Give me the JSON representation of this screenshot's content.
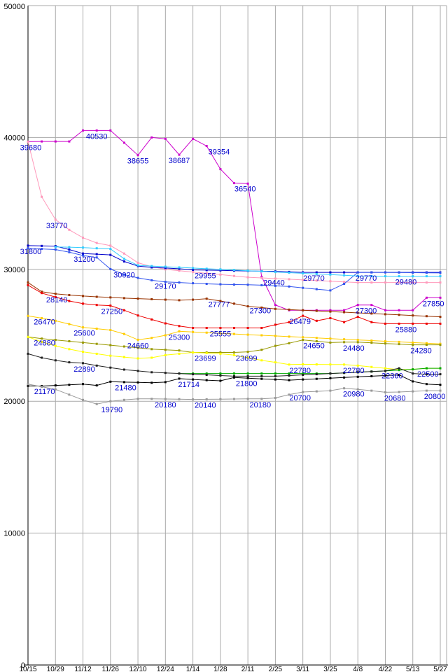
{
  "page": {
    "background": "#ffffff"
  },
  "chart_data": {
    "type": "line",
    "title": "",
    "xlabel": "",
    "ylabel": "",
    "ylim": [
      0,
      50000
    ],
    "y_ticks": [
      0,
      10000,
      20000,
      30000,
      40000,
      50000
    ],
    "y_tick_labels": [
      "0",
      "10000",
      "20000",
      "30000",
      "40000",
      "50000"
    ],
    "x_tick_labels": [
      "10/15",
      "10/29",
      "11/12",
      "11/26",
      "12/10",
      "12/24",
      "1/14",
      "1/28",
      "2/11",
      "2/25",
      "3/11",
      "3/25",
      "4/8",
      "4/22",
      "5/13",
      "5/27"
    ],
    "points_per_interval": 2,
    "grid": true,
    "legend_position": "none",
    "axis_color": "#000000",
    "grid_color": "#aaaaaa",
    "annotation_color": "#0000cc",
    "series": [
      {
        "name": "series-magenta",
        "color": "#cc00cc",
        "values": [
          39680,
          39700,
          39700,
          39700,
          40530,
          40530,
          40530,
          39600,
          38655,
          40000,
          39900,
          38687,
          39900,
          39354,
          37600,
          36540,
          36500,
          29440,
          27300,
          26900,
          26900,
          26900,
          26900,
          26900,
          27300,
          27300,
          26900,
          26900,
          26900,
          27850,
          27850
        ]
      },
      {
        "name": "series-pink",
        "color": "#ff99bb",
        "values": [
          39680,
          35500,
          33770,
          33000,
          32400,
          32000,
          31800,
          31200,
          30500,
          30200,
          30000,
          29900,
          29800,
          29700,
          29600,
          29500,
          29400,
          29350,
          29300,
          29250,
          29200,
          29150,
          29100,
          29050,
          29000,
          29000,
          29000,
          29000,
          29000,
          29000,
          29000
        ]
      },
      {
        "name": "series-blue",
        "color": "#0000cc",
        "values": [
          31800,
          31780,
          31760,
          31500,
          31200,
          31150,
          31100,
          30600,
          30250,
          30150,
          30100,
          30050,
          29955,
          29940,
          29920,
          29900,
          29880,
          29860,
          29840,
          29810,
          29770,
          29770,
          29770,
          29770,
          29770,
          29770,
          29770,
          29770,
          29770,
          29770,
          29770
        ]
      },
      {
        "name": "series-navy",
        "color": "#3355ee",
        "values": [
          31600,
          31550,
          31500,
          31300,
          31050,
          30900,
          30020,
          29600,
          29350,
          29170,
          29050,
          29000,
          28950,
          28900,
          28870,
          28850,
          28830,
          28800,
          28750,
          28700,
          28600,
          28500,
          28400,
          28900,
          29770,
          29770,
          29770,
          29760,
          29750,
          29740,
          29730
        ]
      },
      {
        "name": "series-cyan",
        "color": "#33ccff",
        "values": [
          null,
          null,
          31700,
          31680,
          31650,
          31600,
          31550,
          30800,
          30300,
          30250,
          30200,
          30150,
          30100,
          30050,
          30000,
          29950,
          29900,
          29850,
          29800,
          29750,
          29700,
          29650,
          29600,
          29550,
          29500,
          29490,
          29480,
          29480,
          29480,
          29480,
          29480
        ]
      },
      {
        "name": "series-maroon",
        "color": "#993300",
        "values": [
          29000,
          28300,
          28140,
          28050,
          27980,
          27920,
          27870,
          27820,
          27780,
          27740,
          27700,
          27660,
          27700,
          27777,
          27600,
          27400,
          27200,
          27100,
          27000,
          26950,
          26900,
          26850,
          26800,
          26750,
          26700,
          26650,
          26600,
          26550,
          26500,
          26450,
          26400
        ]
      },
      {
        "name": "series-red",
        "color": "#ee0000",
        "values": [
          28800,
          28200,
          27900,
          27600,
          27400,
          27300,
          27250,
          26900,
          26500,
          26200,
          25900,
          25700,
          25555,
          25555,
          25555,
          25555,
          25555,
          25555,
          25800,
          26000,
          26479,
          26100,
          26300,
          26000,
          26400,
          26000,
          25880,
          25880,
          25880,
          25880,
          25880
        ]
      },
      {
        "name": "series-yellow",
        "color": "#ffcc00",
        "values": [
          26470,
          26300,
          26100,
          25850,
          25600,
          25500,
          25400,
          25100,
          24660,
          24800,
          25000,
          25300,
          25250,
          25200,
          25150,
          25100,
          25050,
          25000,
          24950,
          24900,
          24850,
          24800,
          24750,
          24700,
          24650,
          24600,
          24550,
          24500,
          24450,
          24400,
          24350
        ]
      },
      {
        "name": "series-olive",
        "color": "#999900",
        "values": [
          24880,
          24750,
          24650,
          24550,
          24450,
          24350,
          24250,
          24150,
          24050,
          23950,
          23900,
          23850,
          23699,
          23699,
          23699,
          23699,
          23750,
          23900,
          24200,
          24400,
          24650,
          24550,
          24450,
          24480,
          24480,
          24430,
          24380,
          24330,
          24280,
          24280,
          24280
        ]
      },
      {
        "name": "series-light-yellow",
        "color": "#ffff00",
        "values": [
          24880,
          24500,
          24200,
          23950,
          23750,
          23600,
          23450,
          23350,
          23250,
          23300,
          23500,
          23600,
          23699,
          23650,
          23600,
          23500,
          23300,
          23100,
          22950,
          22780,
          22800,
          22790,
          22785,
          22780,
          22700,
          22600,
          22500,
          22400,
          22420,
          22500,
          22500
        ]
      },
      {
        "name": "series-green",
        "color": "#00aa00",
        "values": [
          null,
          null,
          null,
          null,
          null,
          null,
          null,
          null,
          null,
          null,
          null,
          22100,
          22100,
          22100,
          22100,
          22100,
          22100,
          22100,
          22100,
          22100,
          22100,
          22100,
          22100,
          22150,
          22200,
          22250,
          22300,
          22360,
          22420,
          22500,
          22500
        ]
      },
      {
        "name": "series-black",
        "color": "#222222",
        "values": [
          23600,
          23300,
          23100,
          22950,
          22890,
          22700,
          22550,
          22400,
          22300,
          22200,
          22150,
          22100,
          22050,
          22000,
          21950,
          21900,
          21900,
          21900,
          21900,
          21950,
          22000,
          22050,
          22100,
          22150,
          22200,
          22250,
          22300,
          22500,
          22100,
          22050,
          22050
        ]
      },
      {
        "name": "series-dark",
        "color": "#000000",
        "values": [
          21170,
          21150,
          21200,
          21250,
          21300,
          21200,
          21480,
          21450,
          21430,
          21400,
          21450,
          21714,
          21650,
          21600,
          21550,
          21800,
          21750,
          21700,
          21650,
          21600,
          21650,
          21700,
          21750,
          21800,
          21850,
          21900,
          21950,
          22000,
          21500,
          21300,
          21250
        ]
      },
      {
        "name": "series-gray",
        "color": "#999999",
        "values": [
          21300,
          21100,
          20900,
          20500,
          20100,
          19790,
          20000,
          20100,
          20180,
          20180,
          20170,
          20160,
          20140,
          20150,
          20160,
          20170,
          20180,
          20180,
          20250,
          20500,
          20700,
          20750,
          20800,
          20980,
          20900,
          20800,
          20680,
          20700,
          20750,
          20800,
          20800
        ]
      }
    ],
    "annotations": [
      {
        "text": "39680",
        "xi": 0.2,
        "value": 39680
      },
      {
        "text": "40530",
        "xi": 5.0,
        "value": 40530
      },
      {
        "text": "38655",
        "xi": 8.0,
        "value": 38655
      },
      {
        "text": "38687",
        "xi": 11.0,
        "value": 38687
      },
      {
        "text": "39354",
        "xi": 13.9,
        "value": 39354
      },
      {
        "text": "36540",
        "xi": 15.8,
        "value": 36540
      },
      {
        "text": "33770",
        "xi": 2.1,
        "value": 33770
      },
      {
        "text": "31800",
        "xi": 0.2,
        "value": 31800
      },
      {
        "text": "31200",
        "xi": 4.1,
        "value": 31200
      },
      {
        "text": "30020",
        "xi": 7.0,
        "value": 30020
      },
      {
        "text": "29170",
        "xi": 10.0,
        "value": 29170
      },
      {
        "text": "29955",
        "xi": 12.9,
        "value": 29955
      },
      {
        "text": "29440",
        "xi": 17.9,
        "value": 29440
      },
      {
        "text": "29770",
        "xi": 20.8,
        "value": 29770
      },
      {
        "text": "29770",
        "xi": 24.6,
        "value": 29770
      },
      {
        "text": "29480",
        "xi": 27.5,
        "value": 29480
      },
      {
        "text": "28140",
        "xi": 2.1,
        "value": 28140
      },
      {
        "text": "27250",
        "xi": 6.1,
        "value": 27250
      },
      {
        "text": "27777",
        "xi": 13.9,
        "value": 27777
      },
      {
        "text": "27300",
        "xi": 16.9,
        "value": 27300
      },
      {
        "text": "26479",
        "xi": 19.8,
        "value": 26479
      },
      {
        "text": "27300",
        "xi": 24.6,
        "value": 27300
      },
      {
        "text": "27850",
        "xi": 29.5,
        "value": 27850
      },
      {
        "text": "26470",
        "xi": 1.2,
        "value": 26470
      },
      {
        "text": "25600",
        "xi": 4.1,
        "value": 25600
      },
      {
        "text": "24660",
        "xi": 8.0,
        "value": 24660
      },
      {
        "text": "25300",
        "xi": 11.0,
        "value": 25300
      },
      {
        "text": "25555",
        "xi": 14.0,
        "value": 25555
      },
      {
        "text": "25880",
        "xi": 27.5,
        "value": 25880
      },
      {
        "text": "24880",
        "xi": 1.2,
        "value": 24880
      },
      {
        "text": "23699",
        "xi": 12.9,
        "value": 23699
      },
      {
        "text": "23699",
        "xi": 15.9,
        "value": 23699
      },
      {
        "text": "24650",
        "xi": 20.8,
        "value": 24650
      },
      {
        "text": "24480",
        "xi": 23.7,
        "value": 24480
      },
      {
        "text": "24280",
        "xi": 28.6,
        "value": 24280
      },
      {
        "text": "22890",
        "xi": 4.1,
        "value": 22890
      },
      {
        "text": "22780",
        "xi": 19.8,
        "value": 22780
      },
      {
        "text": "22780",
        "xi": 23.7,
        "value": 22780
      },
      {
        "text": "22360",
        "xi": 26.5,
        "value": 22360
      },
      {
        "text": "22500",
        "xi": 29.1,
        "value": 22500
      },
      {
        "text": "21170",
        "xi": 1.2,
        "value": 21170
      },
      {
        "text": "21480",
        "xi": 7.1,
        "value": 21480
      },
      {
        "text": "21714",
        "xi": 11.7,
        "value": 21714
      },
      {
        "text": "21800",
        "xi": 15.9,
        "value": 21800
      },
      {
        "text": "19790",
        "xi": 6.1,
        "value": 19790
      },
      {
        "text": "20180",
        "xi": 10.0,
        "value": 20180
      },
      {
        "text": "20140",
        "xi": 12.9,
        "value": 20140
      },
      {
        "text": "20180",
        "xi": 16.9,
        "value": 20180
      },
      {
        "text": "20700",
        "xi": 19.8,
        "value": 20700
      },
      {
        "text": "20980",
        "xi": 23.7,
        "value": 20980
      },
      {
        "text": "20680",
        "xi": 26.7,
        "value": 20680
      },
      {
        "text": "20800",
        "xi": 29.6,
        "value": 20800
      }
    ]
  }
}
